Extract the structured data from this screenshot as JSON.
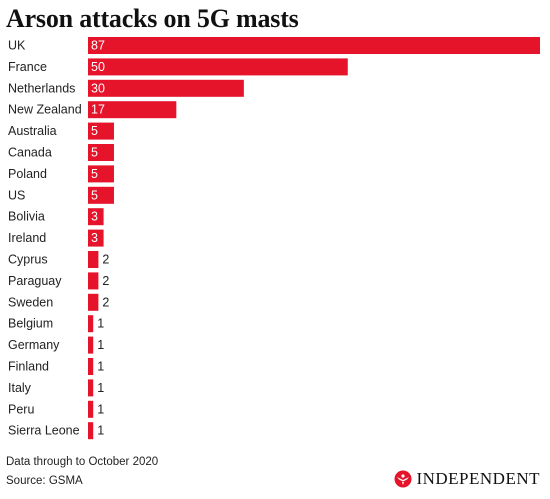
{
  "chart_data": {
    "type": "bar",
    "orientation": "horizontal",
    "title": "Arson attacks on 5G masts",
    "categories": [
      "UK",
      "France",
      "Netherlands",
      "New Zealand",
      "Australia",
      "Canada",
      "Poland",
      "US",
      "Bolivia",
      "Ireland",
      "Cyprus",
      "Paraguay",
      "Sweden",
      "Belgium",
      "Germany",
      "Finland",
      "Italy",
      "Peru",
      "Sierra Leone"
    ],
    "values": [
      87,
      50,
      30,
      17,
      5,
      5,
      5,
      5,
      3,
      3,
      2,
      2,
      2,
      1,
      1,
      1,
      1,
      1,
      1
    ],
    "bar_color": "#e5142b",
    "xlim": [
      0,
      87
    ],
    "grid": false,
    "legend": "none",
    "data_labels": true
  },
  "notes": {
    "through": "Data through to October 2020",
    "source": "Source: GSMA"
  },
  "brand": {
    "name": "INDEPENDENT",
    "icon": "eagle-logo-icon",
    "color": "#e5142b"
  }
}
